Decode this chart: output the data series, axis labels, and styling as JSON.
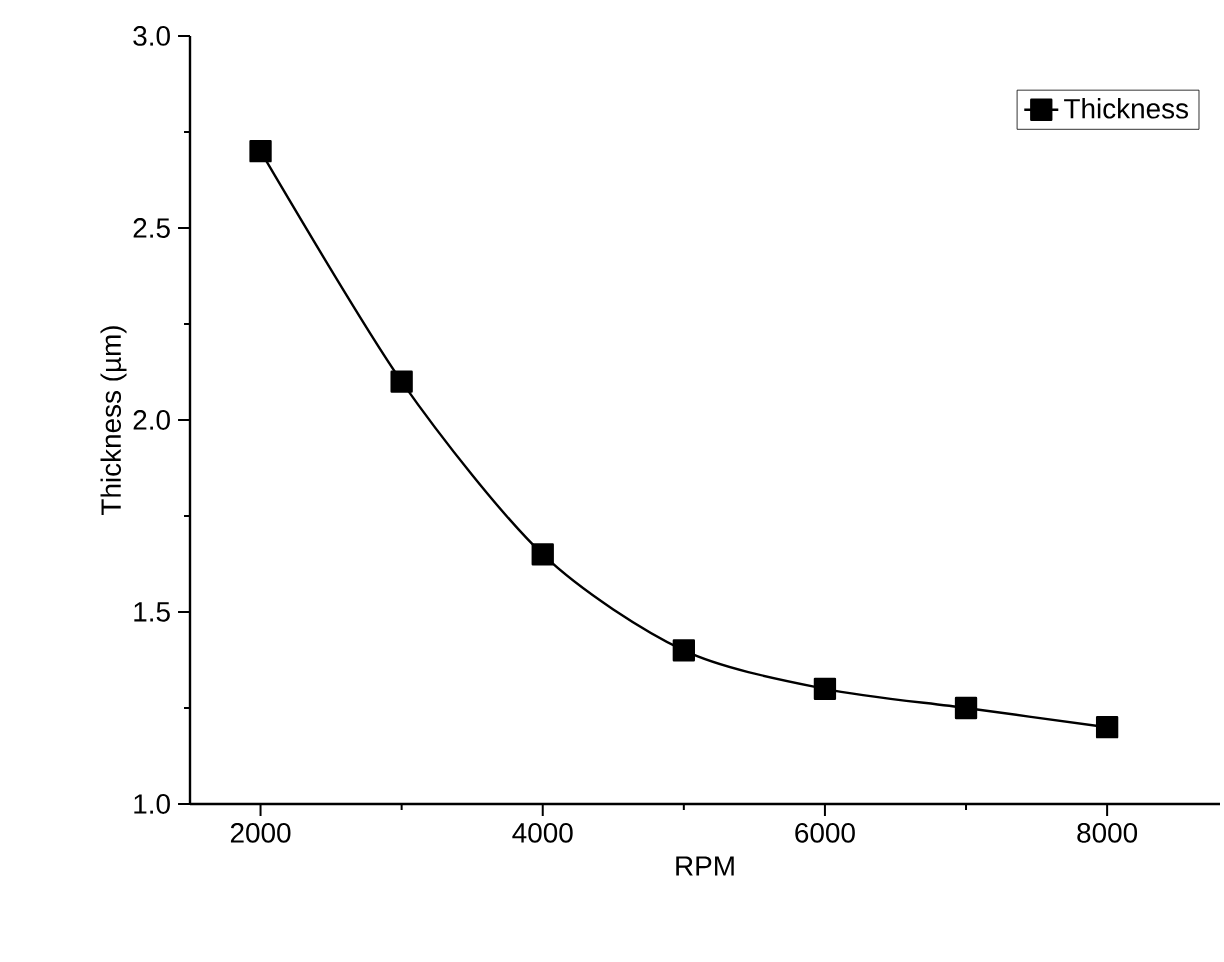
{
  "chart_data": {
    "type": "line",
    "xlabel": "RPM",
    "ylabel": "Thickness (µm)",
    "x": [
      2000,
      3000,
      4000,
      5000,
      6000,
      7000,
      8000
    ],
    "series": [
      {
        "name": "Thickness",
        "color": "#000000",
        "values": [
          2.7,
          2.1,
          1.65,
          1.4,
          1.3,
          1.25,
          1.2
        ]
      }
    ],
    "xlim": [
      1500,
      8800
    ],
    "ylim": [
      1.0,
      3.0
    ],
    "xticks": [
      2000,
      4000,
      6000,
      8000
    ],
    "yticks": [
      {
        "value": 1.0,
        "label": "1.0"
      },
      {
        "value": 1.5,
        "label": "1.5"
      },
      {
        "value": 2.0,
        "label": "2.0"
      },
      {
        "value": 2.5,
        "label": "2.5"
      },
      {
        "value": 3.0,
        "label": "3.0"
      }
    ],
    "legend": "top right",
    "marker": "square",
    "line_style": "solid"
  }
}
